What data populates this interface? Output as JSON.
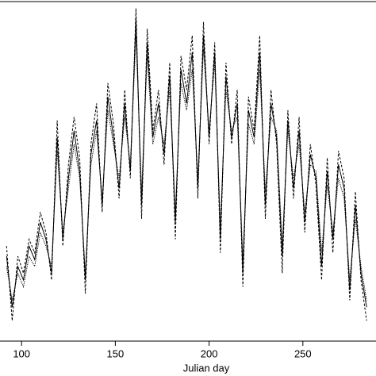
{
  "chart_data": {
    "type": "line",
    "xlabel": "Julian day",
    "x": [
      92,
      95,
      98,
      101,
      104,
      107,
      110,
      113,
      116,
      119,
      122,
      125,
      128,
      131,
      134,
      137,
      140,
      143,
      146,
      149,
      152,
      155,
      158,
      161,
      164,
      167,
      170,
      173,
      176,
      179,
      182,
      185,
      188,
      191,
      194,
      197,
      200,
      203,
      206,
      209,
      212,
      215,
      218,
      221,
      224,
      227,
      230,
      233,
      236,
      239,
      242,
      245,
      248,
      251,
      254,
      257,
      260,
      263,
      266,
      269,
      272,
      275,
      278,
      281,
      284
    ],
    "series": [
      {
        "color": "#000000",
        "style": "solid",
        "values": [
          25,
          10,
          22,
          18,
          28,
          24,
          35,
          30,
          20,
          60,
          30,
          48,
          62,
          50,
          18,
          55,
          65,
          40,
          72,
          60,
          45,
          70,
          50,
          95,
          40,
          88,
          60,
          70,
          55,
          78,
          35,
          80,
          70,
          85,
          45,
          90,
          60,
          85,
          30,
          78,
          60,
          70,
          20,
          68,
          60,
          85,
          40,
          70,
          60,
          25,
          65,
          45,
          62,
          35,
          55,
          48,
          22,
          50,
          30,
          52,
          45,
          15,
          40,
          20,
          10
        ]
      },
      {
        "color": "#000000",
        "style": "dashed",
        "values": [
          28,
          6,
          25,
          20,
          30,
          26,
          38,
          32,
          18,
          65,
          28,
          52,
          66,
          54,
          14,
          58,
          70,
          38,
          76,
          64,
          42,
          74,
          48,
          98,
          36,
          92,
          62,
          74,
          52,
          82,
          30,
          84,
          74,
          90,
          42,
          94,
          58,
          88,
          26,
          82,
          58,
          74,
          16,
          72,
          62,
          90,
          36,
          74,
          58,
          20,
          68,
          42,
          66,
          32,
          58,
          46,
          18,
          54,
          26,
          56,
          48,
          12,
          44,
          18,
          6
        ]
      },
      {
        "color": "#000000",
        "style": "dotted",
        "values": [
          22,
          12,
          20,
          16,
          25,
          22,
          32,
          28,
          22,
          56,
          32,
          45,
          58,
          48,
          20,
          52,
          62,
          42,
          68,
          58,
          48,
          66,
          52,
          90,
          44,
          84,
          58,
          66,
          58,
          74,
          38,
          76,
          68,
          80,
          48,
          86,
          62,
          82,
          34,
          74,
          62,
          66,
          24,
          64,
          58,
          80,
          44,
          66,
          62,
          28,
          62,
          48,
          58,
          38,
          52,
          50,
          26,
          46,
          32,
          48,
          42,
          18,
          36,
          22,
          12
        ]
      }
    ],
    "xlim": [
      88.5,
      289
    ],
    "xticks": [
      100,
      150,
      200,
      250
    ],
    "ylim": [
      0,
      100
    ]
  }
}
